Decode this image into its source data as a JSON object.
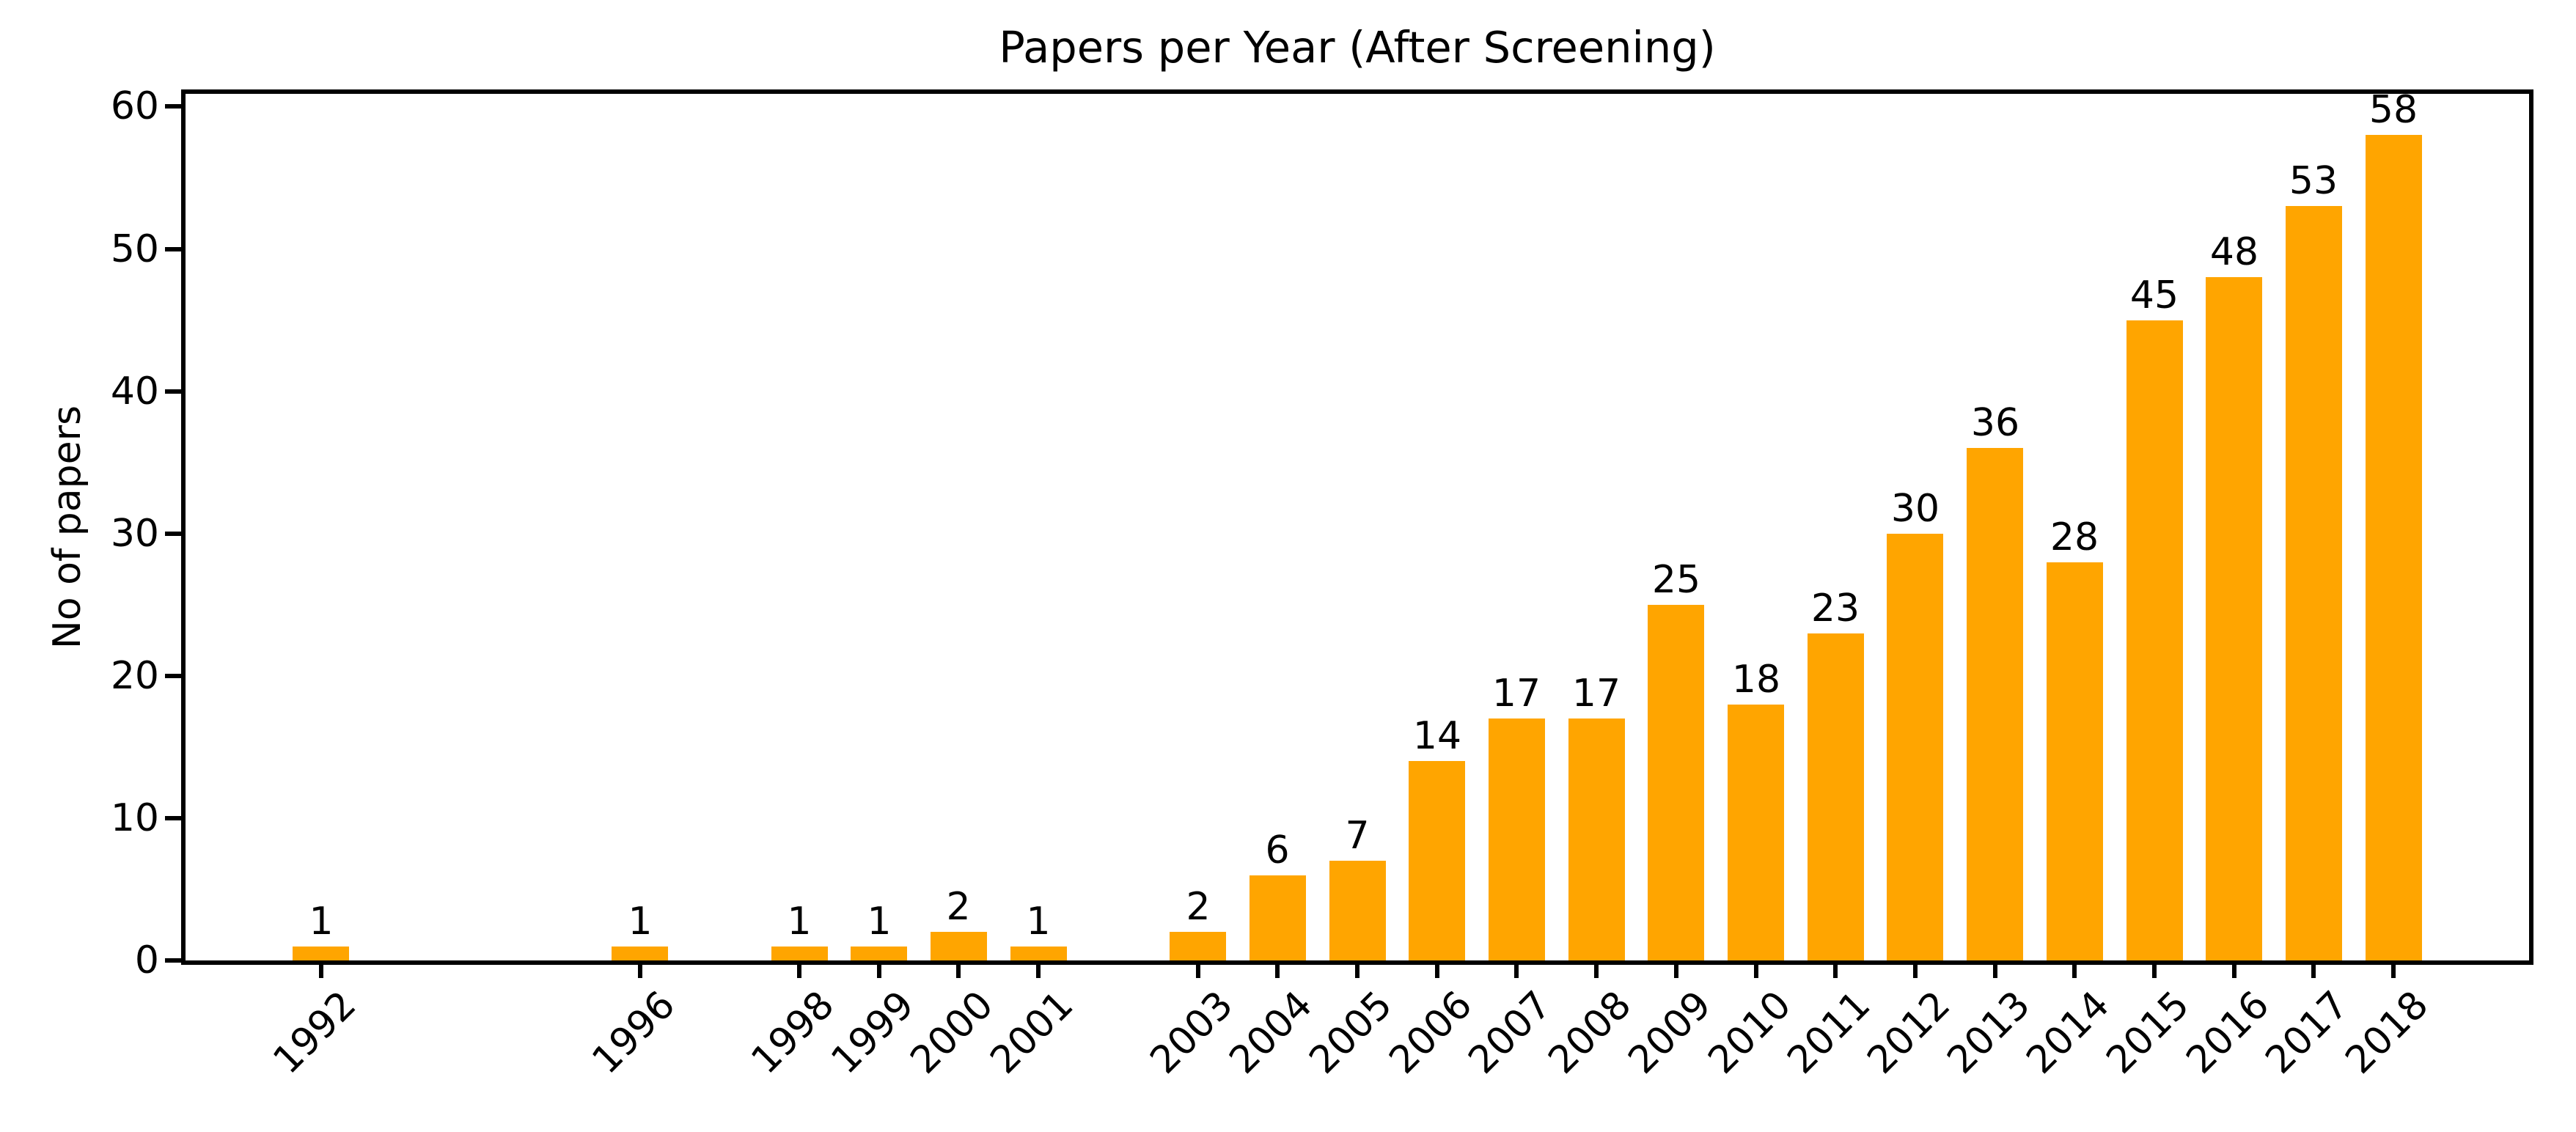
{
  "figure": {
    "background_color": "#ffffff",
    "text_color": "#000000"
  },
  "chart_data": {
    "type": "bar",
    "title": "Papers per Year (After Screening)",
    "xlabel": "",
    "ylabel": "No of papers",
    "categories": [
      "1992",
      "1996",
      "1998",
      "1999",
      "2000",
      "2001",
      "2003",
      "2004",
      "2005",
      "2006",
      "2007",
      "2008",
      "2009",
      "2010",
      "2011",
      "2012",
      "2013",
      "2014",
      "2015",
      "2016",
      "2017",
      "2018"
    ],
    "years_numeric": [
      1992,
      1996,
      1998,
      1999,
      2000,
      2001,
      2003,
      2004,
      2005,
      2006,
      2007,
      2008,
      2009,
      2010,
      2011,
      2012,
      2013,
      2014,
      2015,
      2016,
      2017,
      2018
    ],
    "values": [
      1,
      1,
      1,
      1,
      2,
      1,
      2,
      6,
      7,
      14,
      17,
      17,
      25,
      18,
      23,
      30,
      36,
      28,
      45,
      48,
      53,
      58
    ],
    "value_labels_shown": true,
    "bar_color": "#FFA500",
    "axis_color": "#000000",
    "yticks": [
      0,
      10,
      20,
      30,
      40,
      50,
      60
    ],
    "ylim": [
      0,
      60.9
    ],
    "xlim": [
      1990.3,
      2019.7
    ],
    "bar_width_years": 0.71,
    "x_scale": "linear",
    "x_tick_rotation_deg": 45,
    "grid": false,
    "legend": null
  }
}
